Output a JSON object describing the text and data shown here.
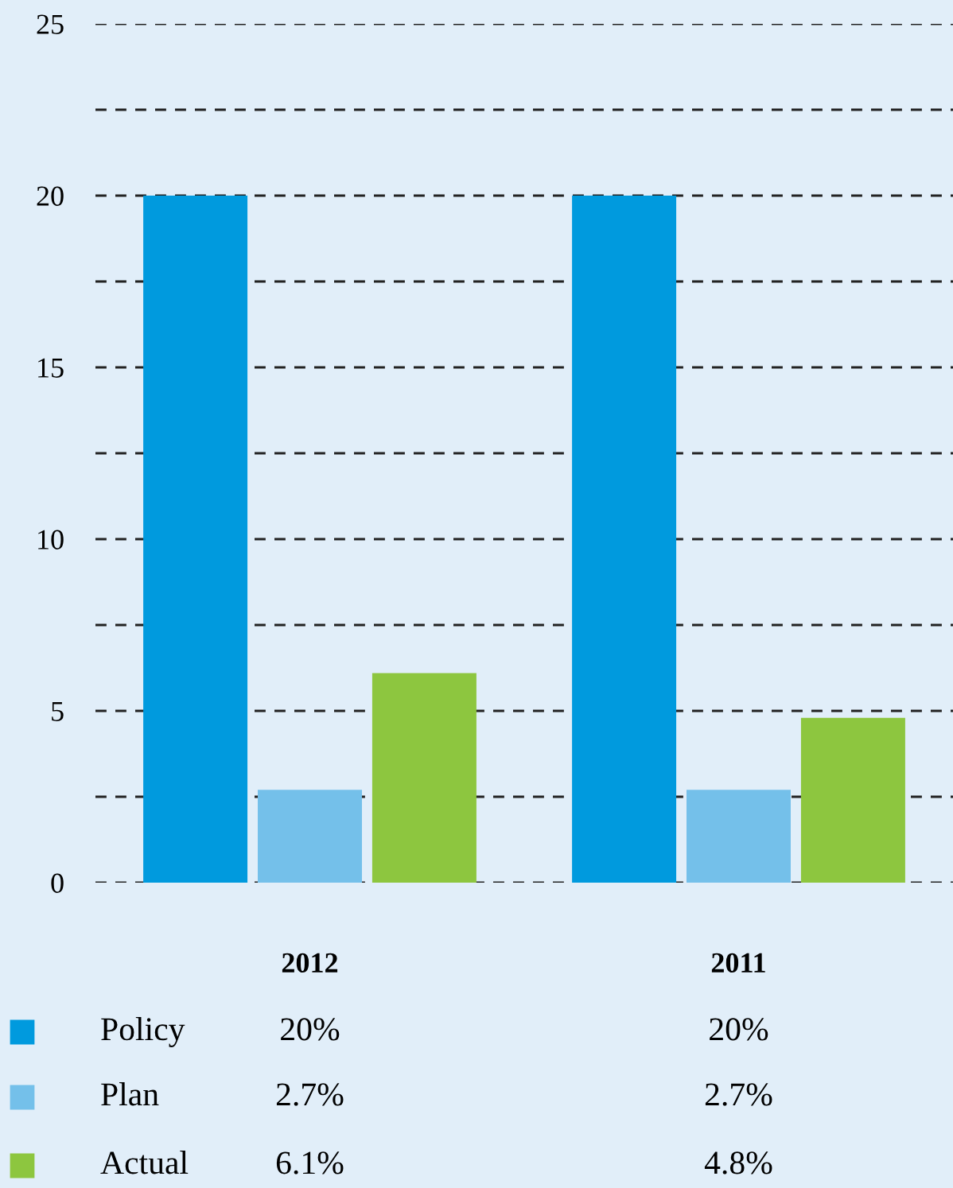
{
  "chart_data": {
    "type": "bar",
    "categories": [
      "2012",
      "2011"
    ],
    "series": [
      {
        "name": "Policy",
        "color": "#009ade",
        "values": [
          20,
          20
        ],
        "value_labels": [
          "20%",
          "20%"
        ]
      },
      {
        "name": "Plan",
        "color": "#74c0ea",
        "values": [
          2.7,
          2.7
        ],
        "value_labels": [
          "2.7%",
          "2.7%"
        ]
      },
      {
        "name": "Actual",
        "color": "#8dc63f",
        "values": [
          6.1,
          4.8
        ],
        "value_labels": [
          "6.1%",
          "4.8%"
        ]
      }
    ],
    "ylim": [
      0,
      25
    ],
    "yticks": [
      0,
      {
        "value": 2.5,
        "label": null
      },
      5,
      {
        "value": 7.5,
        "label": null
      },
      10,
      {
        "value": 12.5,
        "label": null
      },
      15,
      {
        "value": 17.5,
        "label": null
      },
      20,
      {
        "value": 22.5,
        "label": null
      },
      25
    ],
    "grid": "y",
    "legend": "bottom",
    "line_style": "dashed"
  }
}
